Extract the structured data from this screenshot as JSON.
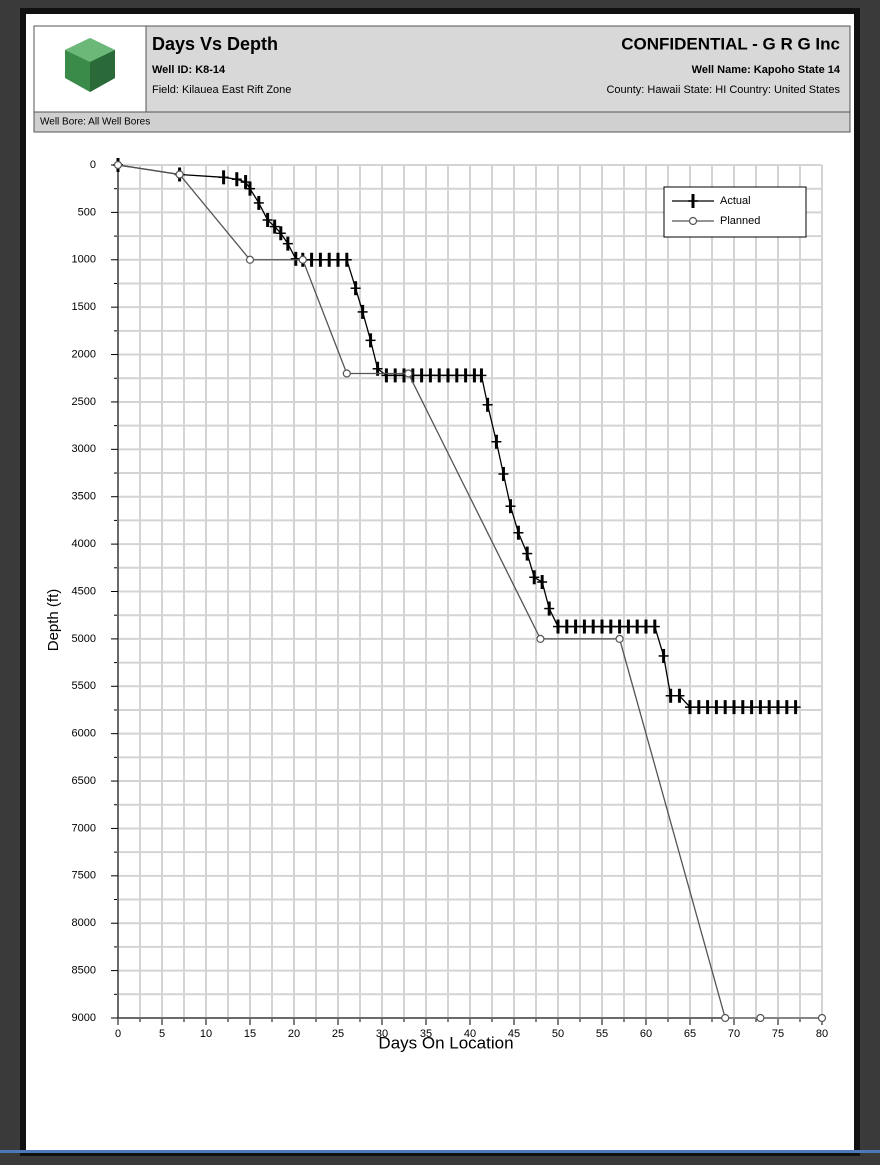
{
  "chart_data": {
    "type": "line",
    "title": "Days Vs Depth",
    "well_id": "Well ID: K8-14",
    "field": "Field: Kilauea East Rift Zone",
    "confidential": "CONFIDENTIAL   -   G R G Inc",
    "well_name": "Well Name: Kapoho State 14",
    "location": "County: Hawaii  State: HI  Country: United States",
    "well_bore": "Well Bore:  All Well Bores",
    "x_label": "Days On Location",
    "y_label": "Depth (ft)",
    "xlim": [
      0,
      80
    ],
    "xticks": [
      0,
      5,
      10,
      15,
      20,
      25,
      30,
      35,
      40,
      45,
      50,
      55,
      60,
      65,
      70,
      75,
      80
    ],
    "ylim": [
      0,
      9000
    ],
    "yticks": [
      0,
      500,
      1000,
      1500,
      2000,
      2500,
      3000,
      3500,
      4000,
      4500,
      5000,
      5500,
      6000,
      6500,
      7000,
      7500,
      8000,
      8500,
      9000
    ],
    "y_inverted": true,
    "grid": true,
    "minor_grid": true,
    "legend": "upper right",
    "series": [
      {
        "name": "Actual",
        "color": "#000000",
        "marker": "plus",
        "x": [
          0,
          7,
          12,
          13.5,
          14.5,
          15,
          16,
          17,
          17.8,
          18.5,
          19.3,
          20.2,
          21,
          22,
          23,
          24,
          25,
          26,
          27,
          27.8,
          28.7,
          29.5,
          30.5,
          31.5,
          32.5,
          33.5,
          34.5,
          35.5,
          36.5,
          37.5,
          38.5,
          39.5,
          40.5,
          41.3,
          42,
          43,
          43.8,
          44.6,
          45.5,
          46.5,
          47.3,
          48.2,
          49,
          50,
          51,
          52,
          53,
          54,
          55,
          56,
          57,
          58,
          59,
          60,
          61,
          62,
          62.8,
          63.8,
          65,
          66,
          67,
          68,
          69,
          70,
          71,
          72,
          73,
          74,
          75,
          76,
          77
        ],
        "values": [
          0,
          100,
          130,
          150,
          180,
          250,
          400,
          580,
          650,
          720,
          830,
          990,
          1000,
          1000,
          1000,
          1000,
          1000,
          1000,
          1300,
          1550,
          1850,
          2150,
          2220,
          2220,
          2220,
          2220,
          2220,
          2220,
          2220,
          2220,
          2220,
          2220,
          2220,
          2220,
          2530,
          2920,
          3260,
          3600,
          3880,
          4100,
          4350,
          4400,
          4680,
          4870,
          4870,
          4870,
          4870,
          4870,
          4870,
          4870,
          4870,
          4870,
          4870,
          4870,
          4870,
          5180,
          5600,
          5600,
          5720,
          5720,
          5720,
          5720,
          5720,
          5720,
          5720,
          5720,
          5720,
          5720,
          5720,
          5720,
          5720
        ]
      },
      {
        "name": "Planned",
        "color": "#555555",
        "marker": "circle",
        "x": [
          0,
          7,
          15,
          21,
          26,
          33,
          48,
          57,
          69,
          73,
          80
        ],
        "values": [
          0,
          100,
          1000,
          1000,
          2200,
          2200,
          5000,
          5000,
          9000,
          9000,
          9000
        ]
      }
    ]
  }
}
